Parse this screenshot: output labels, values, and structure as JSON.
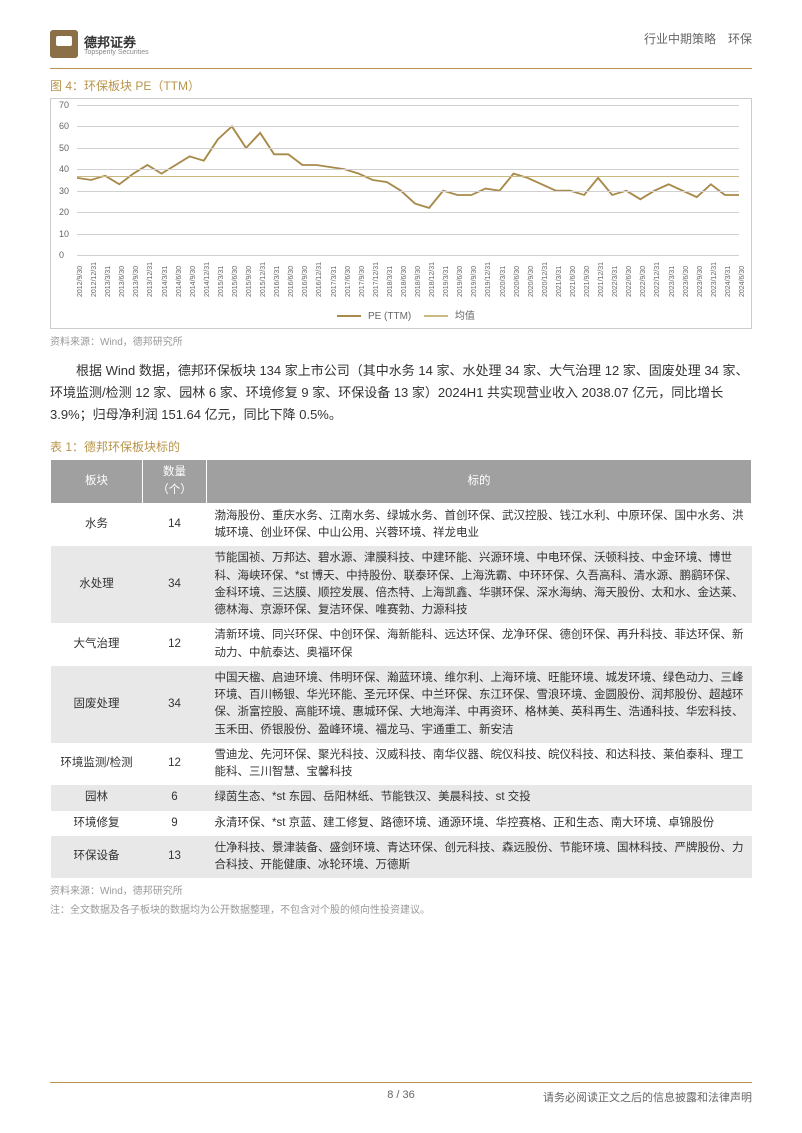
{
  "header": {
    "company_cn": "德邦证券",
    "company_en": "Topsperity Securities",
    "right_text": "行业中期策略　环保"
  },
  "figure": {
    "title": "图 4：环保板块 PE（TTM）",
    "y_ticks": [
      0,
      10,
      20,
      30,
      40,
      50,
      60,
      70
    ],
    "avg_value": 37,
    "x_labels": [
      "2012/9/30",
      "2012/12/31",
      "2013/3/31",
      "2013/6/30",
      "2013/9/30",
      "2013/12/31",
      "2014/3/31",
      "2014/6/30",
      "2014/9/30",
      "2014/12/31",
      "2015/3/31",
      "2015/6/30",
      "2015/9/30",
      "2015/12/31",
      "2016/3/31",
      "2016/6/30",
      "2016/9/30",
      "2016/12/31",
      "2017/3/31",
      "2017/6/30",
      "2017/9/30",
      "2017/12/31",
      "2018/3/31",
      "2018/6/30",
      "2018/9/30",
      "2018/12/31",
      "2019/3/31",
      "2019/6/30",
      "2019/9/30",
      "2019/12/31",
      "2020/3/31",
      "2020/6/30",
      "2020/9/30",
      "2020/12/31",
      "2021/3/31",
      "2021/6/30",
      "2021/9/30",
      "2021/12/31",
      "2022/3/31",
      "2022/6/30",
      "2022/9/30",
      "2022/12/31",
      "2023/3/31",
      "2023/6/30",
      "2023/9/30",
      "2023/12/31",
      "2024/3/31",
      "2024/6/30"
    ],
    "pe_values": [
      36,
      35,
      37,
      33,
      38,
      42,
      38,
      42,
      46,
      44,
      54,
      60,
      50,
      57,
      47,
      47,
      42,
      42,
      41,
      40,
      38,
      35,
      34,
      30,
      24,
      22,
      30,
      28,
      28,
      31,
      30,
      38,
      36,
      33,
      30,
      30,
      28,
      36,
      28,
      30,
      26,
      30,
      33,
      30,
      27,
      33,
      28,
      28
    ],
    "legend": {
      "pe": "PE (TTM)",
      "avg": "均值"
    },
    "colors": {
      "pe_line": "#a88a4a",
      "avg_line": "#c9b980",
      "grid": "#d0d0d0",
      "bg": "#ffffff"
    },
    "ylim": [
      0,
      70
    ]
  },
  "source1": "资料来源：Wind，德邦研究所",
  "body_text": "根据 Wind 数据，德邦环保板块 134 家上市公司（其中水务 14 家、水处理 34 家、大气治理 12 家、固废处理 34 家、环境监测/检测 12 家、园林 6 家、环境修复 9 家、环保设备 13 家）2024H1 共实现营业收入 2038.07 亿元，同比增长 3.9%；归母净利润 151.64 亿元，同比下降 0.5%。",
  "table": {
    "title": "表 1：德邦环保板块标的",
    "columns": [
      "板块",
      "数量（个）",
      "标的"
    ],
    "rows": [
      {
        "sector": "水务",
        "count": "14",
        "names": "渤海股份、重庆水务、江南水务、绿城水务、首创环保、武汉控股、钱江水利、中原环保、国中水务、洪城环境、创业环保、中山公用、兴蓉环境、祥龙电业"
      },
      {
        "sector": "水处理",
        "count": "34",
        "names": "节能国祯、万邦达、碧水源、津膜科技、中建环能、兴源环境、中电环保、沃顿科技、中金环境、博世科、海峡环保、*st 博天、中持股份、联泰环保、上海洗霸、中环环保、久吾高科、清水源、鹏鹞环保、金科环境、三达膜、顺控发展、倍杰特、上海凯鑫、华骐环保、深水海纳、海天股份、太和水、金达莱、德林海、京源环保、复洁环保、唯赛勃、力源科技"
      },
      {
        "sector": "大气治理",
        "count": "12",
        "names": "清新环境、同兴环保、中创环保、海新能科、远达环保、龙净环保、德创环保、再升科技、菲达环保、新动力、中航泰达、奥福环保"
      },
      {
        "sector": "固废处理",
        "count": "34",
        "names": "中国天楹、启迪环境、伟明环保、瀚蓝环境、维尔利、上海环境、旺能环境、城发环境、绿色动力、三峰环境、百川畅银、华光环能、圣元环保、中兰环保、东江环保、雪浪环境、金圆股份、润邦股份、超越环保、浙富控股、高能环境、惠城环保、大地海洋、中再资环、格林美、英科再生、浩通科技、华宏科技、玉禾田、侨银股份、盈峰环境、福龙马、宇通重工、新安洁"
      },
      {
        "sector": "环境监测/检测",
        "count": "12",
        "names": "雪迪龙、先河环保、聚光科技、汉威科技、南华仪器、皖仪科技、皖仪科技、和达科技、莱伯泰科、理工能科、三川智慧、宝馨科技"
      },
      {
        "sector": "园林",
        "count": "6",
        "names": "绿茵生态、*st 东园、岳阳林纸、节能铁汉、美晨科技、st 交投"
      },
      {
        "sector": "环境修复",
        "count": "9",
        "names": "永清环保、*st 京蓝、建工修复、路德环境、通源环境、华控赛格、正和生态、南大环境、卓锦股份"
      },
      {
        "sector": "环保设备",
        "count": "13",
        "names": "仕净科技、景津装备、盛剑环境、青达环保、创元科技、森远股份、节能环境、国林科技、严牌股份、力合科技、开能健康、冰轮环境、万德斯"
      }
    ]
  },
  "source2": "资料来源：Wind，德邦研究所",
  "note": "注：全文数据及各子板块的数据均为公开数据整理，不包含对个股的倾向性投资建议。",
  "footer": {
    "page": "8 / 36",
    "right": "请务必阅读正文之后的信息披露和法律声明"
  }
}
